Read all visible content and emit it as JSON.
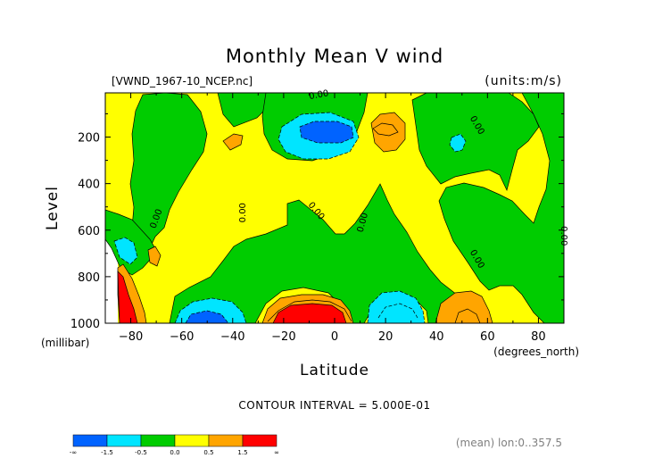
{
  "chart_data": {
    "type": "contour",
    "title": "Monthly Mean V wind",
    "file_label": "[VWND_1967-10_NCEP.nc]",
    "units_label": "(units:m/s)",
    "xlabel": "Latitude",
    "x_units_label": "(degrees_north)",
    "ylabel": "Level",
    "y_units_label": "(millibar)",
    "xlim": [
      -90,
      90
    ],
    "ylim": [
      1000,
      10
    ],
    "x_ticks": [
      -80,
      -60,
      -40,
      -20,
      0,
      20,
      40,
      60,
      80
    ],
    "y_ticks": [
      200,
      400,
      600,
      800,
      1000
    ],
    "contour_interval_text": "CONTOUR INTERVAL = 5.000E-01",
    "footer_text": "(mean) lon:0..357.5",
    "contour_labels": [
      {
        "text": "0.00",
        "lat": -6,
        "lev": 30,
        "angle": -10
      },
      {
        "text": "0.00",
        "lat": -69,
        "lev": 555,
        "angle": -70
      },
      {
        "text": "0.00",
        "lat": -35,
        "lev": 525,
        "angle": -90
      },
      {
        "text": "0.00",
        "lat": -8,
        "lev": 525,
        "angle": 50
      },
      {
        "text": "0.00",
        "lat": 12,
        "lev": 570,
        "angle": -75
      },
      {
        "text": "0.00",
        "lat": 55,
        "lev": 155,
        "angle": 60
      },
      {
        "text": "0.00",
        "lat": 55,
        "lev": 730,
        "angle": 60
      },
      {
        "text": "0.00",
        "lat": 89,
        "lev": 625,
        "angle": 90
      }
    ],
    "colorbar": {
      "colors": [
        "#0063ff",
        "#00e5ff",
        "#00cc00",
        "#ffff00",
        "#ffa500",
        "#ff0000"
      ],
      "labels": [
        "-∞",
        "-1.5",
        "-0.5",
        "0.0",
        "0.5",
        "1.5",
        "∞"
      ]
    }
  }
}
